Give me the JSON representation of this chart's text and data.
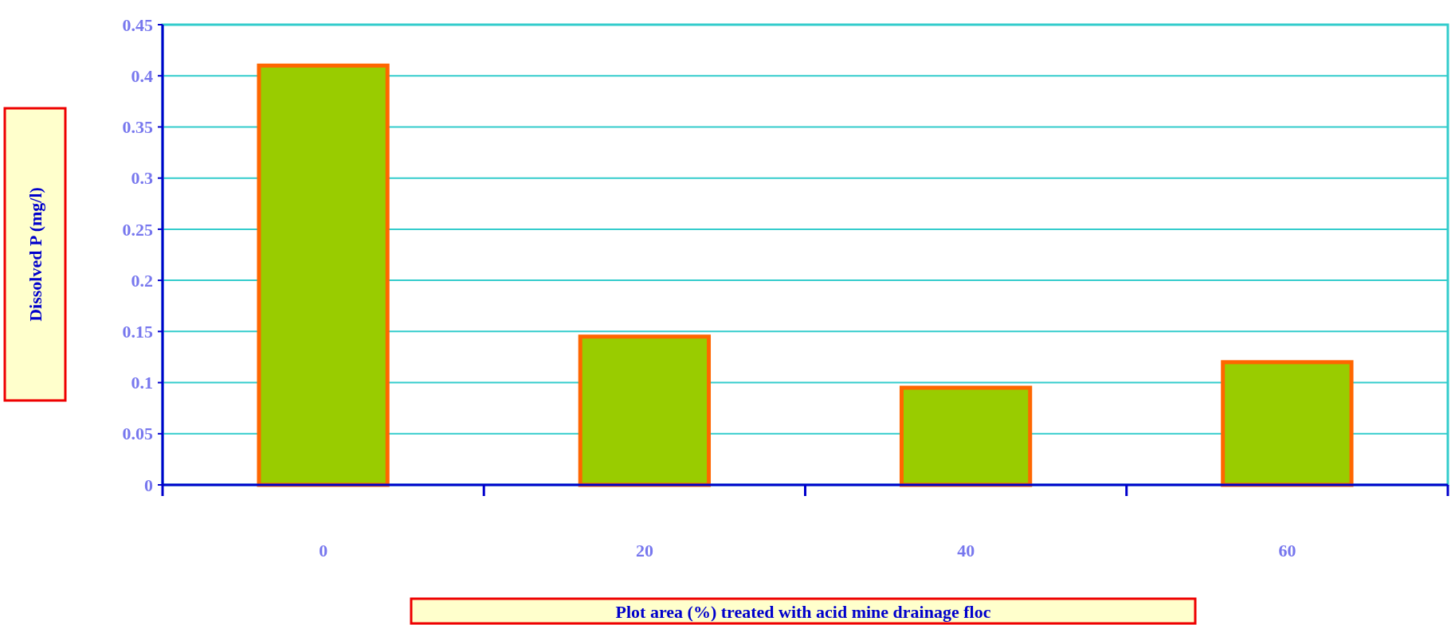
{
  "chart_data": {
    "type": "bar",
    "xlabel": "Plot area (%) treated with acid mine drainage floc",
    "ylabel": "Dissolved P (mg/l)",
    "categories": [
      "0",
      "20",
      "40",
      "60"
    ],
    "values": [
      0.41,
      0.145,
      0.095,
      0.12
    ],
    "color": "#99cc00",
    "ylim": [
      0,
      0.45
    ],
    "yticks": [
      0,
      0.05,
      0.1,
      0.15,
      0.2,
      0.25,
      0.3,
      0.35,
      0.4,
      0.45
    ],
    "grid": "y"
  }
}
